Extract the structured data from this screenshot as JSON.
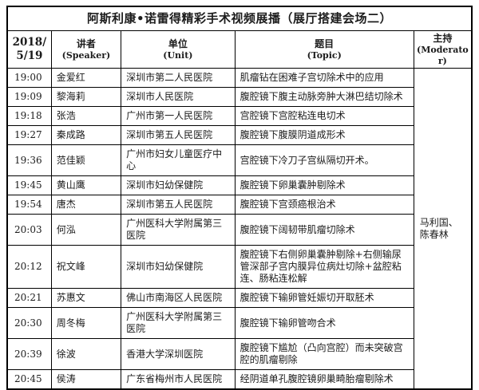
{
  "title": "阿斯利康•诺雷得精彩手术视频展播（展厅搭建会场二）",
  "header": {
    "date": "2018/5/19",
    "speaker_cn": "讲者",
    "speaker_en": "(Speaker)",
    "unit_cn": "单位",
    "unit_en": "(Unit)",
    "topic_cn": "题目",
    "topic_en": "(Topic)",
    "moderator_cn": "主持",
    "moderator_en": "(Moderator)"
  },
  "table": {
    "moderator": "马利国、\n陈春林",
    "rows": [
      {
        "time": "19:00",
        "speaker": "金爱红",
        "unit": "深圳市第二人民医院",
        "topic": "肌瘤钻在困难子宫切除术中的应用"
      },
      {
        "time": "19:09",
        "speaker": "黎海莉",
        "unit": "深圳市人民医院",
        "topic": "腹腔镜下腹主动脉旁肿大淋巴结切除术"
      },
      {
        "time": "19:18",
        "speaker": "张浩",
        "unit": "广州市第一人民医院",
        "topic": "宫腔镜下宫腔粘连电切术"
      },
      {
        "time": "19:27",
        "speaker": "秦成路",
        "unit": "深圳市第五人民医院",
        "topic": "腹腔镜下腹膜阴道成形术"
      },
      {
        "time": "19:36",
        "speaker": "范佳颖",
        "unit": "广州市妇女儿童医疗中心",
        "topic": "宫腔镜下冷刀子宫纵隔切开术。"
      },
      {
        "time": "19:45",
        "speaker": "黄山鹰",
        "unit": "深圳市妇幼保健院",
        "topic": "腹腔镜下卵巢囊肿剔除术"
      },
      {
        "time": "19:54",
        "speaker": "唐杰",
        "unit": "深圳市第五人民医院",
        "topic": "腹腔镜下宫颈癌根治术"
      },
      {
        "time": "20:03",
        "speaker": "何泓",
        "unit": "广州医科大学附属第三医院",
        "topic": "腹腔镜下阔韧带肌瘤切除术"
      },
      {
        "time": "20:12",
        "speaker": "祝文峰",
        "unit": "深圳市妇幼保健院",
        "topic": "腹腔镜下右侧卵巢囊肿剔除+右侧输尿管深部子宫内膜异位病灶切除+盆腔粘连、肠粘连松解"
      },
      {
        "time": "20:21",
        "speaker": "苏惠文",
        "unit": "佛山市南海区人民医院",
        "topic": "腹腔镜下输卵管妊娠切开取胚术"
      },
      {
        "time": "20:30",
        "speaker": "周冬梅",
        "unit": "广州医科大学附属第三医院",
        "topic": "腹腔镜下输卵管吻合术"
      },
      {
        "time": "20:39",
        "speaker": "徐波",
        "unit": "香港大学深圳医院",
        "topic": "腹腔镜下尴尬（凸向宫腔）而未突破宫腔的肌瘤剔除"
      },
      {
        "time": "20:45",
        "speaker": "侯涛",
        "unit": "广东省梅州市人民医院",
        "topic": "经阴道单孔腹腔镜卵巢畸胎瘤剔除术"
      }
    ]
  }
}
